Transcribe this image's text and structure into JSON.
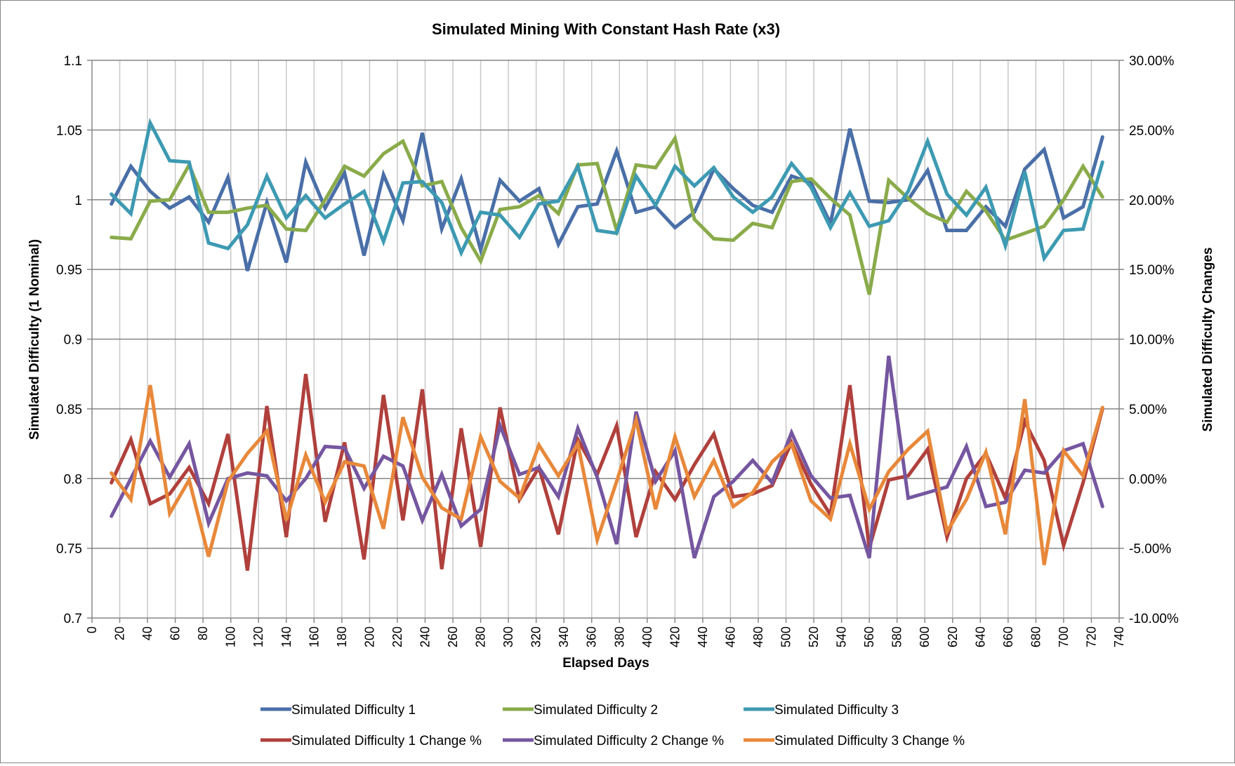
{
  "chart_data": {
    "type": "line",
    "title": "Simulated Mining With Constant Hash Rate (x3)",
    "xlabel": "Elapsed Days",
    "ylabel": "Simulated Difficulty (1 Nominal)",
    "y2label": "Simulated Difficulty Changes",
    "xlim": [
      0,
      740
    ],
    "ylim": [
      0.7,
      1.1
    ],
    "y2lim": [
      -10,
      30
    ],
    "grid": true,
    "legend_position": "bottom",
    "x_ticks": [
      "0",
      "20",
      "40",
      "60",
      "80",
      "100",
      "120",
      "140",
      "160",
      "180",
      "200",
      "220",
      "240",
      "260",
      "280",
      "300",
      "320",
      "340",
      "360",
      "380",
      "400",
      "420",
      "440",
      "460",
      "480",
      "500",
      "520",
      "540",
      "560",
      "580",
      "600",
      "620",
      "640",
      "660",
      "680",
      "700",
      "720",
      "740"
    ],
    "y_ticks": [
      "0.7",
      "0.75",
      "0.8",
      "0.85",
      "0.9",
      "0.95",
      "1",
      "1.05",
      "1.1"
    ],
    "y2_ticks": [
      "-10.00%",
      "-5.00%",
      "0.00%",
      "5.00%",
      "10.00%",
      "15.00%",
      "20.00%",
      "25.00%",
      "30.00%"
    ],
    "x": [
      14,
      28,
      42,
      56,
      70,
      84,
      98,
      112,
      126,
      140,
      154,
      168,
      182,
      196,
      210,
      224,
      238,
      252,
      266,
      280,
      294,
      308,
      322,
      336,
      350,
      364,
      378,
      392,
      406,
      420,
      434,
      448,
      462,
      476,
      490,
      504,
      518,
      532,
      546,
      560,
      574,
      588,
      602,
      616,
      630,
      644,
      658,
      672,
      686,
      700,
      714,
      728
    ],
    "series": [
      {
        "name": "Simulated Difficulty 1",
        "axis": "left",
        "color": "#4a6fa8",
        "values": [
          0.997,
          1.024,
          1.006,
          0.994,
          1.002,
          0.984,
          1.016,
          0.949,
          0.998,
          0.955,
          1.027,
          0.994,
          1.019,
          0.96,
          1.018,
          0.985,
          1.048,
          0.979,
          1.015,
          0.964,
          1.014,
          0.999,
          1.008,
          0.968,
          0.995,
          0.997,
          1.035,
          0.991,
          0.995,
          0.98,
          0.991,
          1.022,
          1.008,
          0.996,
          0.991,
          1.017,
          1.012,
          0.983,
          1.051,
          0.999,
          0.998,
          1.0,
          1.021,
          0.978,
          0.978,
          0.995,
          0.981,
          1.022,
          1.036,
          0.987,
          0.995,
          1.045
        ]
      },
      {
        "name": "Simulated Difficulty 2",
        "axis": "left",
        "color": "#8aab4a",
        "values": [
          0.973,
          0.972,
          0.999,
          1.0,
          1.025,
          0.991,
          0.991,
          0.994,
          0.996,
          0.979,
          0.978,
          1.0,
          1.024,
          1.017,
          1.033,
          1.042,
          1.01,
          1.013,
          0.98,
          0.956,
          0.993,
          0.995,
          1.003,
          0.99,
          1.025,
          1.026,
          0.978,
          1.025,
          1.023,
          1.044,
          0.986,
          0.972,
          0.971,
          0.983,
          0.98,
          1.013,
          1.015,
          1.001,
          0.989,
          0.932,
          1.014,
          1.001,
          0.99,
          0.984,
          1.006,
          0.992,
          0.971,
          0.976,
          0.981,
          1.0,
          1.024,
          1.002
        ]
      },
      {
        "name": "Simulated Difficulty 3",
        "axis": "left",
        "color": "#3d9ab2",
        "values": [
          1.004,
          0.99,
          1.055,
          1.028,
          1.027,
          0.969,
          0.965,
          0.982,
          1.017,
          0.987,
          1.003,
          0.987,
          0.997,
          1.006,
          0.97,
          1.012,
          1.013,
          0.998,
          0.962,
          0.991,
          0.989,
          0.973,
          0.997,
          0.999,
          1.024,
          0.978,
          0.976,
          1.017,
          0.996,
          1.024,
          1.01,
          1.023,
          1.002,
          0.991,
          1.002,
          1.026,
          1.009,
          0.98,
          1.005,
          0.981,
          0.985,
          1.006,
          1.042,
          1.004,
          0.989,
          1.009,
          0.967,
          1.02,
          0.958,
          0.978,
          0.979,
          1.027
        ]
      },
      {
        "name": "Simulated Difficulty 1 Change %",
        "axis": "right",
        "color": "#b0403c",
        "values": [
          -0.3,
          2.8,
          -1.8,
          -1.1,
          0.8,
          -1.8,
          3.2,
          -6.6,
          5.2,
          -4.2,
          7.5,
          -3.1,
          2.6,
          -5.8,
          6.0,
          -3.0,
          6.4,
          -6.5,
          3.6,
          -4.9,
          5.1,
          -1.5,
          0.8,
          -4.0,
          2.8,
          0.3,
          3.8,
          -4.2,
          0.5,
          -1.5,
          1.0,
          3.2,
          -1.3,
          -1.1,
          -0.5,
          2.6,
          -0.4,
          -2.6,
          6.7,
          -5.0,
          -0.1,
          0.2,
          2.1,
          -4.2,
          0.0,
          1.8,
          -1.4,
          4.1,
          1.3,
          -4.8,
          -0.3,
          5.0
        ]
      },
      {
        "name": "Simulated Difficulty 2 Change %",
        "axis": "right",
        "color": "#7556a0",
        "values": [
          -2.7,
          0.0,
          2.7,
          0.1,
          2.5,
          -3.2,
          0.0,
          0.4,
          0.2,
          -1.6,
          0.0,
          2.3,
          2.2,
          -0.7,
          1.6,
          0.9,
          -3.0,
          0.3,
          -3.4,
          -2.2,
          3.8,
          0.3,
          0.8,
          -1.3,
          3.6,
          0.1,
          -4.7,
          4.8,
          -0.2,
          2.0,
          -5.7,
          -1.3,
          -0.2,
          1.3,
          -0.3,
          3.3,
          0.2,
          -1.4,
          -1.2,
          -5.7,
          8.8,
          -1.4,
          -1.0,
          -0.6,
          2.3,
          -2.0,
          -1.7,
          0.6,
          0.4,
          2.0,
          2.5,
          -2.0
        ]
      },
      {
        "name": "Simulated Difficulty 3 Change %",
        "axis": "right",
        "color": "#e8883a",
        "values": [
          0.4,
          -1.5,
          6.7,
          -2.5,
          -0.1,
          -5.6,
          -0.2,
          1.8,
          3.4,
          -3.0,
          1.7,
          -1.7,
          1.2,
          0.9,
          -3.6,
          4.4,
          0.1,
          -2.1,
          -2.9,
          3.0,
          -0.2,
          -1.4,
          2.4,
          0.2,
          2.5,
          -4.4,
          -0.2,
          4.2,
          -2.2,
          3.0,
          -1.3,
          1.3,
          -2.0,
          -1.0,
          1.2,
          2.5,
          -1.6,
          -2.9,
          2.5,
          -2.2,
          0.5,
          2.1,
          3.4,
          -3.8,
          -1.5,
          1.9,
          -4.0,
          5.7,
          -6.2,
          2.0,
          0.2,
          5.1
        ]
      }
    ]
  }
}
